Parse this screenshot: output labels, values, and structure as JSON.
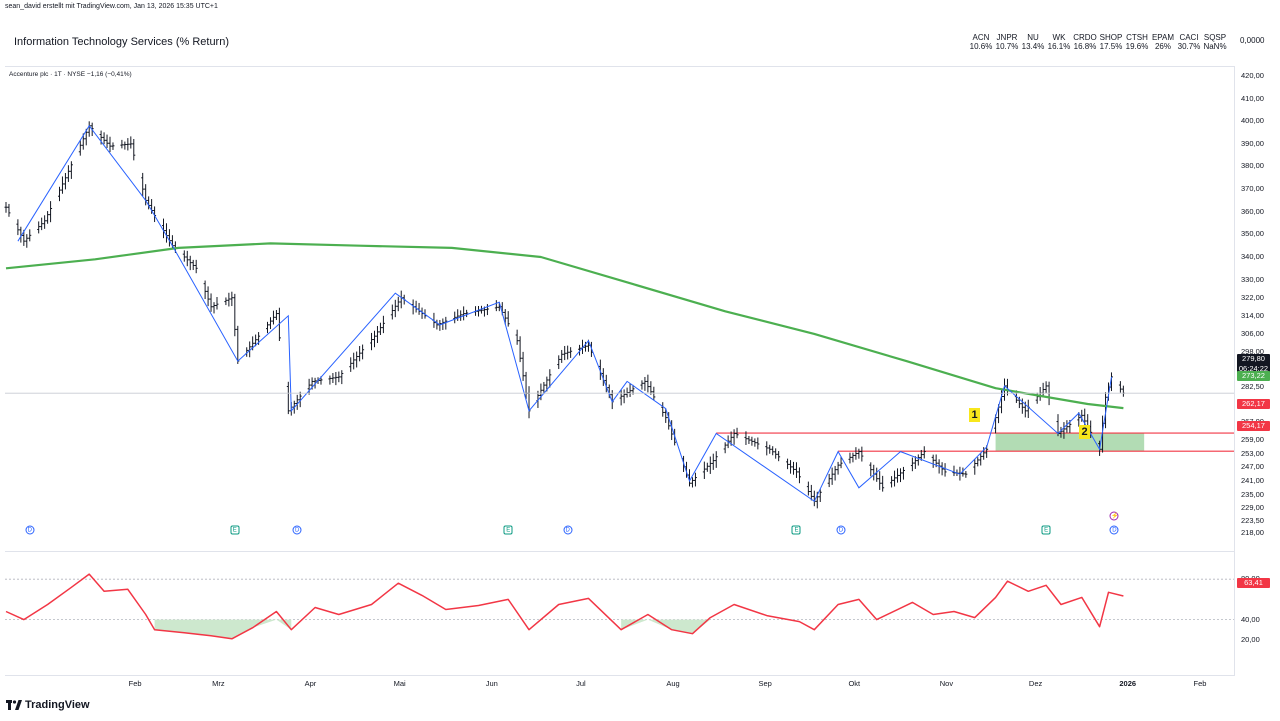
{
  "attribution": "sean_david erstellt mit TradingView.com, Jan 13, 2026 15:35 UTC+1",
  "header": {
    "title": "Information Technology Services (% Return)",
    "axis_value": "0,0000",
    "performance": [
      {
        "symbol": "ACN",
        "value": "10.6%"
      },
      {
        "symbol": "JNPR",
        "value": "10.7%"
      },
      {
        "symbol": "NU",
        "value": "13.4%"
      },
      {
        "symbol": "WK",
        "value": "16.1%"
      },
      {
        "symbol": "CRDO",
        "value": "16.8%"
      },
      {
        "symbol": "SHOP",
        "value": "17.5%"
      },
      {
        "symbol": "CTSH",
        "value": "19.6%"
      },
      {
        "symbol": "EPAM",
        "value": "26%"
      },
      {
        "symbol": "CACI",
        "value": "30.7%"
      },
      {
        "symbol": "SQSP",
        "value": "NaN%"
      }
    ]
  },
  "legend": "Accenture plc · 1T · NYSE  −1,16 (−0,41%)",
  "badges": {
    "last_price": "279,80",
    "countdown": "06:24:22",
    "ma_value": "273,22",
    "upper_level": "262,17",
    "lower_level": "254,17",
    "rsi_value": "63,41"
  },
  "markers": {
    "one": "1",
    "two": "2"
  },
  "events": {
    "dividend": "D",
    "earnings": "E",
    "split": "⚡"
  },
  "logo": "TradingView",
  "colors": {
    "ma": "#4caf50",
    "zigzag": "#2962ff",
    "levels": "#f23645",
    "zone": "#a5d6a7",
    "rsi": "#f23645",
    "bars": "#131722"
  },
  "chart_data": [
    {
      "type": "ohlc",
      "title": "Accenture plc · 1T · NYSE",
      "y_axis": {
        "range": [
          218,
          420
        ],
        "ticks": [
          "420,00",
          "410,00",
          "400,00",
          "390,00",
          "380,00",
          "370,00",
          "360,00",
          "350,00",
          "340,00",
          "330,00",
          "322,00",
          "314,00",
          "306,00",
          "298,00",
          "290,00",
          "282,50",
          "267,00",
          "259,00",
          "253,00",
          "247,00",
          "241,00",
          "235,00",
          "229,00",
          "223,50",
          "218,00"
        ],
        "tick_values": [
          420,
          410,
          400,
          390,
          380,
          370,
          360,
          350,
          340,
          330,
          322,
          314,
          306,
          298,
          290,
          282.5,
          267,
          259,
          253,
          247,
          241,
          235,
          229,
          223.5,
          218
        ]
      },
      "x_axis": {
        "labels": [
          "Feb",
          "Mrz",
          "Apr",
          "Mai",
          "Jun",
          "Jul",
          "Aug",
          "Sep",
          "Okt",
          "Nov",
          "Dez",
          "2026",
          "Feb"
        ],
        "bold": [
          false,
          false,
          false,
          false,
          false,
          false,
          false,
          false,
          false,
          false,
          false,
          true,
          false
        ]
      },
      "price_path": [
        {
          "date": "2025-01-02",
          "close": 362
        },
        {
          "date": "2025-01-08",
          "close": 347
        },
        {
          "date": "2025-01-15",
          "close": 356
        },
        {
          "date": "2025-01-22",
          "close": 375
        },
        {
          "date": "2025-01-30",
          "close": 398
        },
        {
          "date": "2025-02-06",
          "close": 389
        },
        {
          "date": "2025-02-13",
          "close": 390
        },
        {
          "date": "2025-02-18",
          "close": 365
        },
        {
          "date": "2025-02-27",
          "close": 345
        },
        {
          "date": "2025-03-07",
          "close": 335
        },
        {
          "date": "2025-03-12",
          "close": 318
        },
        {
          "date": "2025-03-19",
          "close": 322
        },
        {
          "date": "2025-03-21",
          "close": 294
        },
        {
          "date": "2025-03-28",
          "close": 305
        },
        {
          "date": "2025-04-03",
          "close": 315
        },
        {
          "date": "2025-04-07",
          "close": 272
        },
        {
          "date": "2025-04-15",
          "close": 285
        },
        {
          "date": "2025-04-24",
          "close": 287
        },
        {
          "date": "2025-05-06",
          "close": 305
        },
        {
          "date": "2025-05-15",
          "close": 322
        },
        {
          "date": "2025-05-27",
          "close": 310
        },
        {
          "date": "2025-06-05",
          "close": 315
        },
        {
          "date": "2025-06-17",
          "close": 318
        },
        {
          "date": "2025-06-23",
          "close": 303
        },
        {
          "date": "2025-06-27",
          "close": 272
        },
        {
          "date": "2025-07-08",
          "close": 297
        },
        {
          "date": "2025-07-17",
          "close": 301
        },
        {
          "date": "2025-07-25",
          "close": 276
        },
        {
          "date": "2025-08-05",
          "close": 285
        },
        {
          "date": "2025-08-12",
          "close": 269
        },
        {
          "date": "2025-08-20",
          "close": 240
        },
        {
          "date": "2025-08-28",
          "close": 250
        },
        {
          "date": "2025-09-04",
          "close": 262
        },
        {
          "date": "2025-09-16",
          "close": 255
        },
        {
          "date": "2025-09-25",
          "close": 245
        },
        {
          "date": "2025-10-01",
          "close": 232
        },
        {
          "date": "2025-10-09",
          "close": 248
        },
        {
          "date": "2025-10-16",
          "close": 254
        },
        {
          "date": "2025-10-24",
          "close": 238
        },
        {
          "date": "2025-11-04",
          "close": 250
        },
        {
          "date": "2025-11-07",
          "close": 254
        },
        {
          "date": "2025-11-14",
          "close": 245
        },
        {
          "date": "2025-11-21",
          "close": 244
        },
        {
          "date": "2025-11-28",
          "close": 255
        },
        {
          "date": "2025-12-04",
          "close": 283
        },
        {
          "date": "2025-12-11",
          "close": 272
        },
        {
          "date": "2025-12-18",
          "close": 283
        },
        {
          "date": "2025-12-22",
          "close": 262
        },
        {
          "date": "2025-12-30",
          "close": 270
        },
        {
          "date": "2026-01-05",
          "close": 255
        },
        {
          "date": "2026-01-07",
          "close": 278
        },
        {
          "date": "2026-01-09",
          "close": 287
        },
        {
          "date": "2026-01-13",
          "close": 279.8
        }
      ],
      "moving_average": [
        {
          "date": "2025-01-02",
          "value": 335
        },
        {
          "date": "2025-02-01",
          "value": 339
        },
        {
          "date": "2025-03-01",
          "value": 344
        },
        {
          "date": "2025-04-01",
          "value": 346
        },
        {
          "date": "2025-05-01",
          "value": 345
        },
        {
          "date": "2025-06-01",
          "value": 344
        },
        {
          "date": "2025-07-01",
          "value": 340
        },
        {
          "date": "2025-08-01",
          "value": 328
        },
        {
          "date": "2025-09-01",
          "value": 316
        },
        {
          "date": "2025-10-01",
          "value": 306
        },
        {
          "date": "2025-11-01",
          "value": 294
        },
        {
          "date": "2025-12-01",
          "value": 282
        },
        {
          "date": "2026-01-01",
          "value": 275
        },
        {
          "date": "2026-01-13",
          "value": 273.22
        }
      ],
      "zigzag": [
        {
          "date": "2025-01-06",
          "value": 347
        },
        {
          "date": "2025-01-30",
          "value": 398
        },
        {
          "date": "2025-02-18",
          "value": 365
        },
        {
          "date": "2025-02-27",
          "value": 345
        },
        {
          "date": "2025-03-21",
          "value": 294
        },
        {
          "date": "2025-04-07",
          "value": 314
        },
        {
          "date": "2025-04-08",
          "value": 272
        },
        {
          "date": "2025-05-13",
          "value": 324
        },
        {
          "date": "2025-05-28",
          "value": 310
        },
        {
          "date": "2025-06-17",
          "value": 320
        },
        {
          "date": "2025-06-27",
          "value": 272
        },
        {
          "date": "2025-07-17",
          "value": 303
        },
        {
          "date": "2025-07-25",
          "value": 276
        },
        {
          "date": "2025-07-30",
          "value": 285
        },
        {
          "date": "2025-08-12",
          "value": 273
        },
        {
          "date": "2025-08-20",
          "value": 241
        },
        {
          "date": "2025-08-29",
          "value": 262
        },
        {
          "date": "2025-10-01",
          "value": 232
        },
        {
          "date": "2025-10-09",
          "value": 254
        },
        {
          "date": "2025-10-16",
          "value": 238
        },
        {
          "date": "2025-10-30",
          "value": 254
        },
        {
          "date": "2025-11-19",
          "value": 244
        },
        {
          "date": "2025-11-28",
          "value": 256
        },
        {
          "date": "2025-12-04",
          "value": 283
        },
        {
          "date": "2025-12-22",
          "value": 262
        },
        {
          "date": "2025-12-29",
          "value": 271
        },
        {
          "date": "2026-01-05",
          "value": 255
        },
        {
          "date": "2026-01-09",
          "value": 287
        }
      ],
      "levels": [
        {
          "name": "upper",
          "value": 262.17,
          "from": "2025-08-29",
          "to": "2026-01-26"
        },
        {
          "name": "lower",
          "value": 254.17,
          "from": "2025-10-09",
          "to": "2026-01-26"
        }
      ],
      "zone": {
        "from": "2025-12-01",
        "to": "2026-01-20",
        "low": 254.17,
        "high": 262.17
      },
      "current_price_line": 279.8,
      "events": [
        {
          "type": "dividend",
          "date": "2025-01-10"
        },
        {
          "type": "earnings",
          "date": "2025-03-20"
        },
        {
          "type": "dividend",
          "date": "2025-04-10"
        },
        {
          "type": "earnings",
          "date": "2025-06-20"
        },
        {
          "type": "dividend",
          "date": "2025-07-10"
        },
        {
          "type": "earnings",
          "date": "2025-09-25"
        },
        {
          "type": "dividend",
          "date": "2025-10-10"
        },
        {
          "type": "earnings",
          "date": "2025-12-18"
        },
        {
          "type": "dividend",
          "date": "2026-01-10"
        },
        {
          "type": "split",
          "date": "2026-01-10"
        }
      ]
    },
    {
      "type": "line",
      "title": "",
      "y_axis": {
        "range": [
          0,
          100
        ],
        "ticks": [
          "80,00",
          "40,00",
          "20,00"
        ],
        "tick_values": [
          80,
          40,
          20
        ]
      },
      "bands": [
        40,
        80
      ],
      "series": [
        {
          "name": "",
          "values": [
            {
              "date": "2025-01-02",
              "value": 48
            },
            {
              "date": "2025-01-08",
              "value": 40
            },
            {
              "date": "2025-01-16",
              "value": 55
            },
            {
              "date": "2025-01-24",
              "value": 72
            },
            {
              "date": "2025-01-30",
              "value": 85
            },
            {
              "date": "2025-02-04",
              "value": 68
            },
            {
              "date": "2025-02-12",
              "value": 70
            },
            {
              "date": "2025-02-18",
              "value": 45
            },
            {
              "date": "2025-02-21",
              "value": 30
            },
            {
              "date": "2025-03-03",
              "value": 27
            },
            {
              "date": "2025-03-12",
              "value": 24
            },
            {
              "date": "2025-03-19",
              "value": 21
            },
            {
              "date": "2025-03-26",
              "value": 32
            },
            {
              "date": "2025-04-03",
              "value": 48
            },
            {
              "date": "2025-04-08",
              "value": 30
            },
            {
              "date": "2025-04-16",
              "value": 52
            },
            {
              "date": "2025-04-24",
              "value": 45
            },
            {
              "date": "2025-05-05",
              "value": 55
            },
            {
              "date": "2025-05-14",
              "value": 76
            },
            {
              "date": "2025-05-22",
              "value": 64
            },
            {
              "date": "2025-05-30",
              "value": 50
            },
            {
              "date": "2025-06-10",
              "value": 54
            },
            {
              "date": "2025-06-20",
              "value": 60
            },
            {
              "date": "2025-06-27",
              "value": 30
            },
            {
              "date": "2025-07-07",
              "value": 55
            },
            {
              "date": "2025-07-17",
              "value": 61
            },
            {
              "date": "2025-07-28",
              "value": 30
            },
            {
              "date": "2025-08-06",
              "value": 45
            },
            {
              "date": "2025-08-14",
              "value": 30
            },
            {
              "date": "2025-08-21",
              "value": 26
            },
            {
              "date": "2025-08-27",
              "value": 42
            },
            {
              "date": "2025-09-04",
              "value": 55
            },
            {
              "date": "2025-09-15",
              "value": 44
            },
            {
              "date": "2025-09-26",
              "value": 38
            },
            {
              "date": "2025-10-01",
              "value": 30
            },
            {
              "date": "2025-10-09",
              "value": 55
            },
            {
              "date": "2025-10-16",
              "value": 60
            },
            {
              "date": "2025-10-22",
              "value": 40
            },
            {
              "date": "2025-11-03",
              "value": 57
            },
            {
              "date": "2025-11-10",
              "value": 45
            },
            {
              "date": "2025-11-17",
              "value": 48
            },
            {
              "date": "2025-11-24",
              "value": 42
            },
            {
              "date": "2025-12-01",
              "value": 62
            },
            {
              "date": "2025-12-05",
              "value": 78
            },
            {
              "date": "2025-12-12",
              "value": 68
            },
            {
              "date": "2025-12-18",
              "value": 74
            },
            {
              "date": "2025-12-23",
              "value": 55
            },
            {
              "date": "2025-12-30",
              "value": 62
            },
            {
              "date": "2026-01-05",
              "value": 33
            },
            {
              "date": "2026-01-08",
              "value": 67
            },
            {
              "date": "2026-01-13",
              "value": 63.41
            }
          ]
        }
      ]
    }
  ]
}
